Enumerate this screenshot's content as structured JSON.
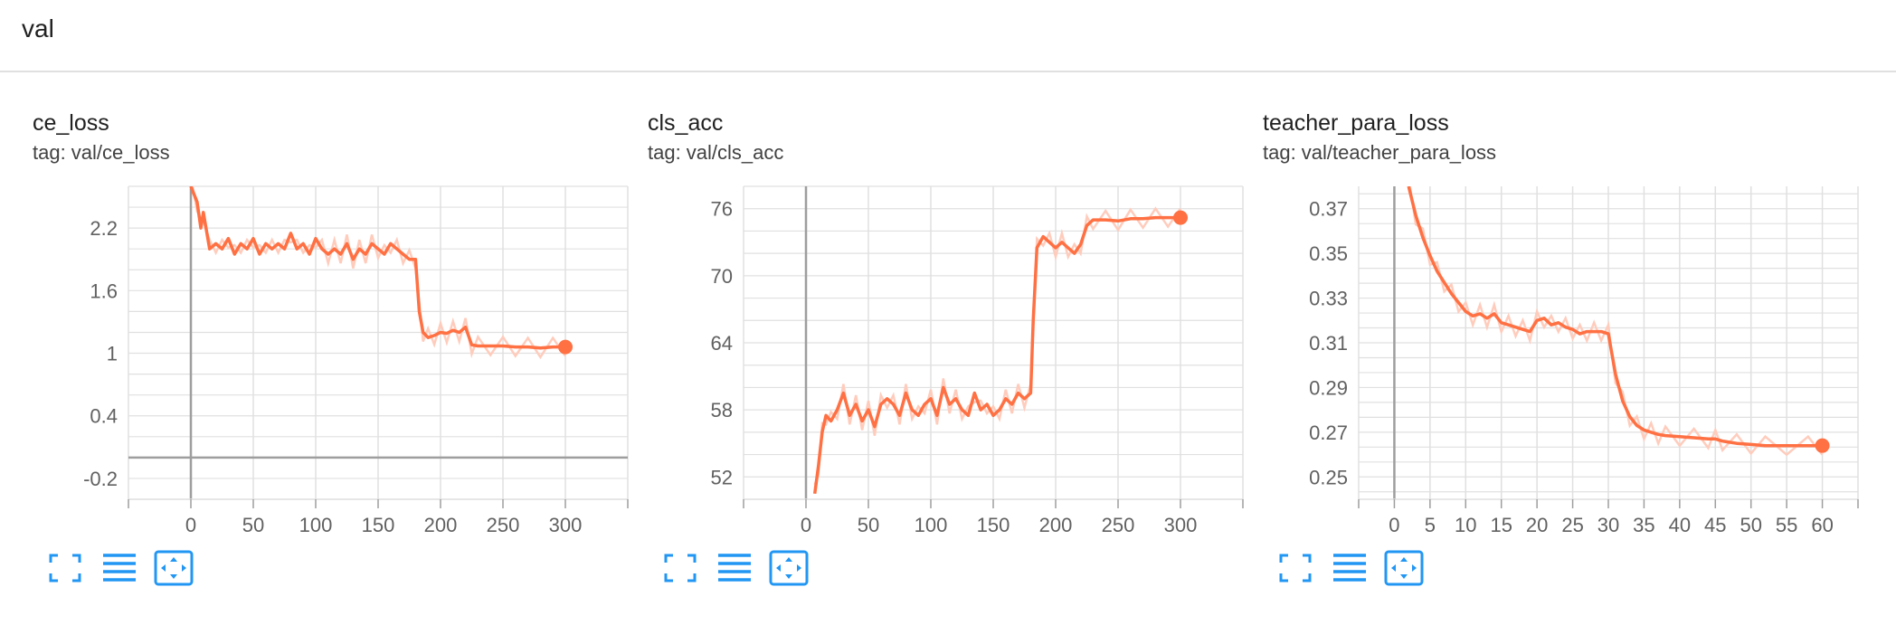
{
  "group": {
    "title": "val"
  },
  "colors": {
    "line": "#ff7043",
    "smoothed_raw": "#ffccbc",
    "grid": "#e0e0e0",
    "axis": "#9e9e9e",
    "icon": "#2196f3"
  },
  "cards": [
    {
      "title": "ce_loss",
      "tag": "tag: val/ce_loss",
      "toolbar": [
        "fullscreen-icon",
        "toggle-log-icon",
        "fit-domain-icon"
      ]
    },
    {
      "title": "cls_acc",
      "tag": "tag: val/cls_acc",
      "toolbar": [
        "fullscreen-icon",
        "toggle-log-icon",
        "fit-domain-icon"
      ]
    },
    {
      "title": "teacher_para_loss",
      "tag": "tag: val/teacher_para_loss",
      "toolbar": [
        "fullscreen-icon",
        "toggle-log-icon",
        "fit-domain-icon"
      ]
    }
  ],
  "chart_data": [
    {
      "type": "line",
      "title": "ce_loss",
      "xlim": [
        -50,
        350
      ],
      "ylim": [
        -0.4,
        2.6
      ],
      "xticks": [
        0,
        50,
        100,
        150,
        200,
        250,
        300
      ],
      "yticks": [
        -0.2,
        0.4,
        1,
        1.6,
        2.2
      ],
      "ytick_labels": [
        "-0.2",
        "0.4",
        "1",
        "1.6",
        "2.2"
      ],
      "grid": true,
      "series": [
        {
          "x": [
            0,
            5,
            8,
            10,
            15,
            20,
            25,
            30,
            35,
            40,
            45,
            50,
            55,
            60,
            65,
            70,
            75,
            80,
            85,
            90,
            95,
            100,
            105,
            110,
            115,
            120,
            125,
            130,
            135,
            140,
            145,
            150,
            155,
            160,
            165,
            170,
            175,
            180,
            183,
            186,
            190,
            195,
            200,
            205,
            210,
            215,
            220,
            225,
            230,
            240,
            250,
            260,
            270,
            280,
            290,
            300
          ],
          "values": [
            2.6,
            2.45,
            2.2,
            2.35,
            2.0,
            2.05,
            2.0,
            2.1,
            1.95,
            2.05,
            2.0,
            2.1,
            1.95,
            2.05,
            2.0,
            2.05,
            2.0,
            2.15,
            2.0,
            2.05,
            1.95,
            2.1,
            2.0,
            1.95,
            2.0,
            1.95,
            2.05,
            1.9,
            2.0,
            1.95,
            2.05,
            2.0,
            1.95,
            2.05,
            2.0,
            1.95,
            1.9,
            1.9,
            1.4,
            1.2,
            1.15,
            1.17,
            1.2,
            1.19,
            1.22,
            1.2,
            1.25,
            1.08,
            1.07,
            1.07,
            1.07,
            1.06,
            1.06,
            1.05,
            1.06,
            1.06
          ]
        }
      ]
    },
    {
      "type": "line",
      "title": "cls_acc",
      "xlim": [
        -50,
        350
      ],
      "ylim": [
        50,
        78
      ],
      "xticks": [
        0,
        50,
        100,
        150,
        200,
        250,
        300
      ],
      "yticks": [
        52,
        58,
        64,
        70,
        76
      ],
      "ytick_labels": [
        "52",
        "58",
        "64",
        "70",
        "76"
      ],
      "grid": true,
      "series": [
        {
          "x": [
            7,
            10,
            13,
            16,
            20,
            25,
            30,
            35,
            40,
            45,
            50,
            55,
            60,
            65,
            70,
            75,
            80,
            85,
            90,
            95,
            100,
            105,
            110,
            115,
            120,
            125,
            130,
            135,
            140,
            145,
            150,
            155,
            160,
            165,
            170,
            175,
            180,
            182,
            185,
            190,
            195,
            200,
            205,
            210,
            215,
            220,
            225,
            230,
            240,
            250,
            260,
            270,
            280,
            290,
            300
          ],
          "values": [
            50.5,
            53,
            56,
            57.5,
            57,
            58,
            59.5,
            57.5,
            58.5,
            57,
            58,
            56.5,
            58.5,
            59,
            58.5,
            57.5,
            59.5,
            58,
            57.5,
            58.5,
            59,
            57.5,
            60,
            58.5,
            59,
            58,
            57.5,
            59.5,
            58,
            58.5,
            57.5,
            58,
            59,
            58.5,
            59.5,
            59,
            59.5,
            66,
            72.5,
            73.5,
            73,
            72.5,
            73,
            72.5,
            72,
            72.8,
            74.5,
            75,
            75,
            74.9,
            75.1,
            75.1,
            75.2,
            75.2,
            75.2
          ]
        }
      ]
    },
    {
      "type": "line",
      "title": "teacher_para_loss",
      "xlim": [
        -5,
        65
      ],
      "ylim": [
        0.24,
        0.38
      ],
      "xticks": [
        0,
        5,
        10,
        15,
        20,
        25,
        30,
        35,
        40,
        45,
        50,
        55,
        60
      ],
      "yticks": [
        0.25,
        0.27,
        0.29,
        0.31,
        0.33,
        0.35,
        0.37
      ],
      "ytick_labels": [
        "0.25",
        "0.27",
        "0.29",
        "0.31",
        "0.33",
        "0.35",
        "0.37"
      ],
      "grid": true,
      "series": [
        {
          "x": [
            2,
            3,
            4,
            5,
            6,
            7,
            8,
            9,
            10,
            11,
            12,
            13,
            14,
            15,
            16,
            17,
            18,
            19,
            20,
            21,
            22,
            23,
            24,
            25,
            26,
            27,
            28,
            29,
            30,
            31,
            32,
            33,
            34,
            35,
            36,
            37,
            38,
            40,
            42,
            44,
            45,
            46,
            48,
            50,
            52,
            55,
            58,
            60
          ],
          "values": [
            0.38,
            0.367,
            0.357,
            0.349,
            0.342,
            0.337,
            0.332,
            0.328,
            0.324,
            0.322,
            0.323,
            0.321,
            0.323,
            0.319,
            0.318,
            0.317,
            0.316,
            0.315,
            0.32,
            0.321,
            0.318,
            0.319,
            0.317,
            0.316,
            0.314,
            0.315,
            0.315,
            0.315,
            0.314,
            0.296,
            0.284,
            0.277,
            0.273,
            0.271,
            0.27,
            0.269,
            0.2685,
            0.268,
            0.2675,
            0.267,
            0.267,
            0.266,
            0.265,
            0.2645,
            0.264,
            0.264,
            0.264,
            0.264
          ]
        }
      ]
    }
  ]
}
